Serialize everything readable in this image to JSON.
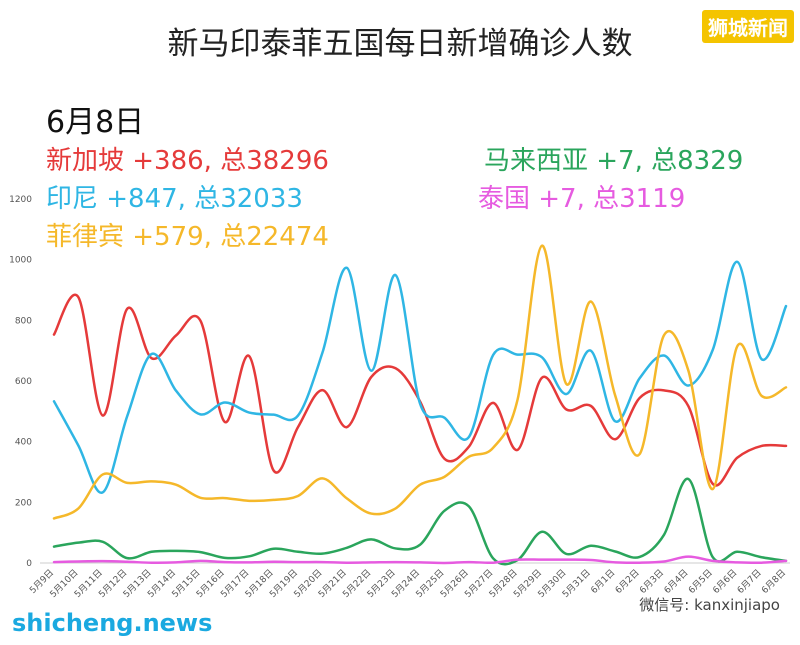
{
  "title": "新马印泰菲五国每日新增确诊人数",
  "brand": "狮城新闻",
  "date_label": "6月8日",
  "annotations": {
    "singapore": "新加坡 +386, 总38296",
    "indonesia": "印尼 +847, 总32033",
    "philippines": "菲律宾 +579, 总22474",
    "malaysia": "马来西亚 +7, 总8329",
    "thailand": "泰国 +7, 总3119"
  },
  "footer": "shicheng.news",
  "wechat": "微信号: kanxinjiapo",
  "colors": {
    "singapore": "#e53a3a",
    "indonesia": "#2fb6e4",
    "philippines": "#f5b82a",
    "malaysia": "#2aa55c",
    "thailand": "#e65be0"
  },
  "chart_data": {
    "type": "line",
    "title": "新马印泰菲五国每日新增确诊人数",
    "xlabel": "",
    "ylabel": "",
    "ylim": [
      0,
      1200
    ],
    "yticks": [
      0,
      200,
      400,
      600,
      800,
      1000,
      1200
    ],
    "grid": false,
    "categories": [
      "5月9日",
      "5月10日",
      "5月11日",
      "5月12日",
      "5月13日",
      "5月14日",
      "5月15日",
      "5月16日",
      "5月17日",
      "5月18日",
      "5月19日",
      "5月20日",
      "5月21日",
      "5月22日",
      "5月23日",
      "5月24日",
      "5月25日",
      "5月26日",
      "5月27日",
      "5月28日",
      "5月29日",
      "5月30日",
      "5月31日",
      "6月1日",
      "6月2日",
      "6月3日",
      "6月4日",
      "6月5日",
      "6月6日",
      "6月7日",
      "6月8日"
    ],
    "series": [
      {
        "key": "singapore",
        "values": [
          753,
          876,
          486,
          838,
          675,
          750,
          799,
          465,
          682,
          305,
          448,
          570,
          448,
          613,
          642,
          533,
          344,
          383,
          528,
          373,
          611,
          506,
          518,
          408,
          544,
          569,
          517,
          261,
          347,
          386,
          386
        ]
      },
      {
        "key": "indonesia",
        "values": [
          533,
          387,
          233,
          484,
          689,
          568,
          490,
          529,
          496,
          489,
          486,
          693,
          973,
          634,
          949,
          526,
          479,
          415,
          686,
          687,
          678,
          557,
          700,
          467,
          609,
          684,
          585,
          703,
          993,
          672,
          847
        ]
      },
      {
        "key": "philippines",
        "values": [
          147,
          180,
          292,
          264,
          269,
          258,
          215,
          214,
          205,
          208,
          221,
          279,
          213,
          163,
          180,
          258,
          284,
          350,
          380,
          539,
          1046,
          590,
          862,
          552,
          359,
          751,
          634,
          244,
          714,
          551,
          579
        ]
      },
      {
        "key": "malaysia",
        "values": [
          54,
          67,
          70,
          16,
          37,
          40,
          36,
          17,
          22,
          47,
          37,
          31,
          50,
          78,
          48,
          60,
          172,
          187,
          15,
          10,
          103,
          30,
          57,
          38,
          20,
          93,
          277,
          19,
          37,
          19,
          7
        ]
      },
      {
        "key": "thailand",
        "values": [
          3,
          5,
          6,
          4,
          1,
          2,
          7,
          3,
          2,
          4,
          3,
          3,
          1,
          2,
          3,
          2,
          0,
          3,
          1,
          11,
          11,
          11,
          10,
          2,
          1,
          5,
          21,
          7,
          2,
          1,
          7
        ]
      }
    ]
  }
}
